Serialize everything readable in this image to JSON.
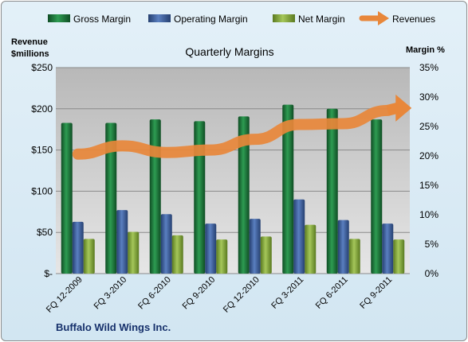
{
  "chart_data": {
    "type": "bar",
    "title": "Quarterly Margins",
    "company": "Buffalo Wild Wings Inc.",
    "ylabel_left": "Revenue $millions",
    "ylabel_left_lines": [
      "Revenue",
      "$millions"
    ],
    "ylabel_right": "Margin %",
    "categories": [
      "FQ 12-2009",
      "FQ 3-2010",
      "FQ 6-2010",
      "FQ 9-2010",
      "FQ 12-2010",
      "FQ 3-2011",
      "FQ 6-2011",
      "FQ 9-2011"
    ],
    "y_left_ticks": [
      "$-",
      "$50",
      "$100",
      "$150",
      "$200",
      "$250"
    ],
    "y_left_range": [
      0,
      250
    ],
    "y_right_ticks": [
      "0%",
      "5%",
      "10%",
      "15%",
      "20%",
      "25%",
      "30%",
      "35%"
    ],
    "y_right_range": [
      0,
      35
    ],
    "grid": true,
    "legend_position": "top",
    "series": [
      {
        "name": "Gross Margin",
        "axis": "right",
        "kind": "bar",
        "color": "#1e7a3c",
        "values": [
          25.6,
          25.6,
          26.2,
          25.9,
          26.7,
          28.7,
          28.0,
          26.2
        ]
      },
      {
        "name": "Operating Margin",
        "axis": "right",
        "kind": "bar",
        "color": "#3d5f9e",
        "values": [
          8.8,
          10.8,
          10.1,
          8.5,
          9.3,
          12.6,
          9.1,
          8.5
        ]
      },
      {
        "name": "Net Margin",
        "axis": "right",
        "kind": "bar",
        "color": "#84a83a",
        "values": [
          5.9,
          7.1,
          6.5,
          5.8,
          6.3,
          8.3,
          5.9,
          5.8
        ]
      },
      {
        "name": "Revenues",
        "axis": "left",
        "kind": "arrow-line",
        "color": "#e8873a",
        "values": [
          145,
          155,
          147,
          150,
          163,
          181,
          182,
          198
        ]
      }
    ]
  }
}
